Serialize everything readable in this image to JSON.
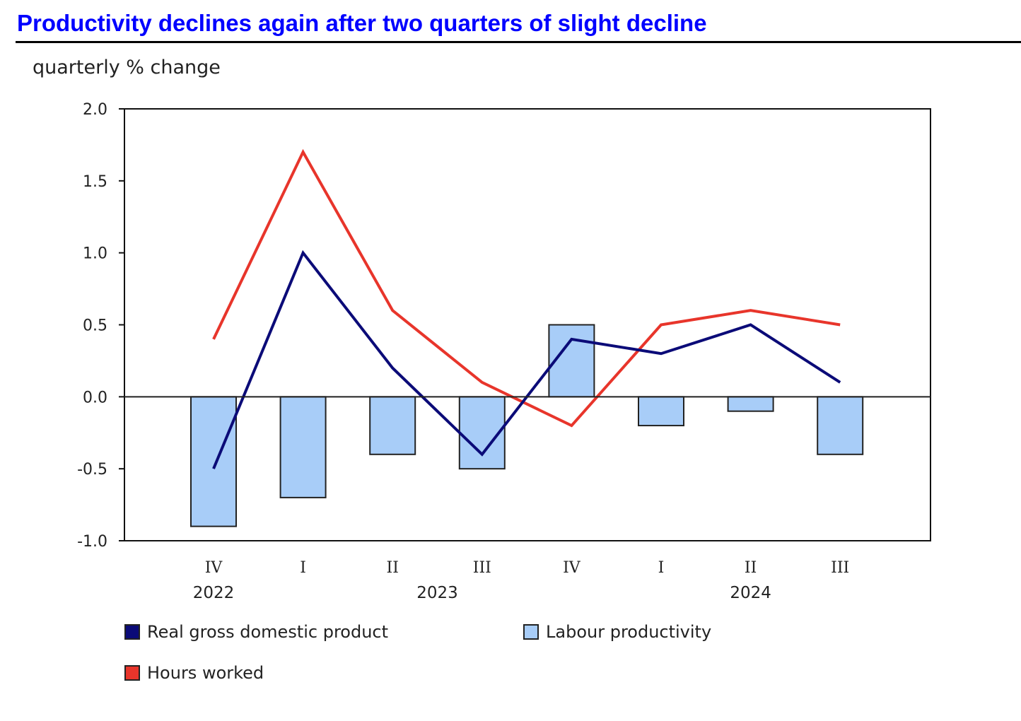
{
  "chart_data": {
    "type": "bar",
    "title": "Productivity declines again after two quarters of slight decline",
    "ylabel": "quarterly % change",
    "xlabel": "",
    "categories": [
      "IV",
      "I",
      "II",
      "III",
      "IV",
      "I",
      "II",
      "III"
    ],
    "years": [
      {
        "label": "2022",
        "categories": [
          "IV"
        ]
      },
      {
        "label": "2023",
        "categories": [
          "I",
          "II",
          "III",
          "IV"
        ]
      },
      {
        "label": "2024",
        "categories": [
          "I",
          "II",
          "III"
        ]
      }
    ],
    "ylim": [
      -1.0,
      2.0
    ],
    "yticks": [
      "2.0",
      "1.5",
      "1.0",
      "0.5",
      "0.0",
      "-0.5",
      "-1.0"
    ],
    "grid": false,
    "legend_position": "bottom",
    "series": [
      {
        "name": "Real gross domestic product",
        "type": "line",
        "color": "#0b0b78",
        "values": [
          -0.5,
          1.0,
          0.2,
          -0.4,
          0.4,
          0.3,
          0.5,
          0.1
        ]
      },
      {
        "name": "Labour productivity",
        "type": "bar",
        "color": "#a8cdf8",
        "values": [
          -0.9,
          -0.7,
          -0.4,
          -0.5,
          0.5,
          -0.2,
          -0.1,
          -0.4
        ]
      },
      {
        "name": "Hours worked",
        "type": "line",
        "color": "#e8352b",
        "values": [
          0.4,
          1.7,
          0.6,
          0.1,
          -0.2,
          0.5,
          0.6,
          0.5
        ]
      }
    ]
  }
}
